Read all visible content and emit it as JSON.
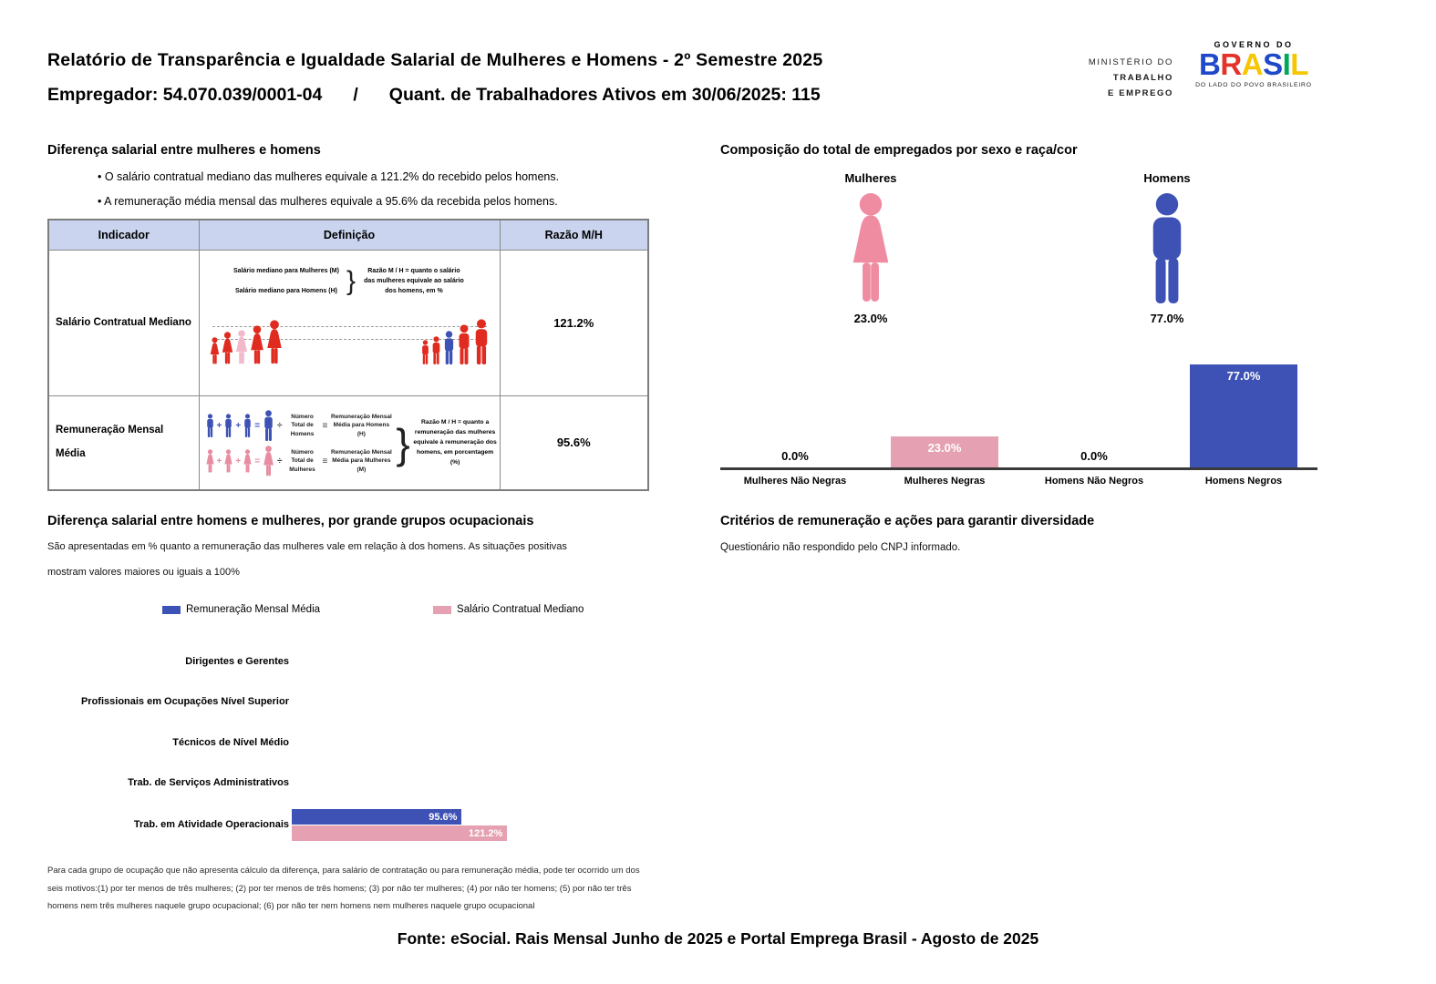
{
  "colors": {
    "men_blue": "#3d52b4",
    "women_pink_icon": "#f08ca2",
    "bar_pink": "#e5a1b1",
    "figure_red": "#e02b20",
    "figure_light_pink": "#f2b9cb",
    "table_header_bg": "#cbd4ee",
    "brasil_letters": [
      "#1f49c9",
      "#e3342c",
      "#f6c700",
      "#1f49c9",
      "#00a859",
      "#f6c700"
    ]
  },
  "header": {
    "title": "Relatório de Transparência e Igualdade Salarial de Mulheres e Homens - 2º Semestre 2025",
    "employer": "Empregador: 54.070.039/0001-04",
    "separator": "/",
    "workers": "Quant. de Trabalhadores Ativos em 30/06/2025: 115",
    "ministry_line1": "MINISTÉRIO DO",
    "ministry_line2": "TRABALHO",
    "ministry_line3": "E EMPREGO",
    "gov_top": "GOVERNO DO",
    "gov_name": "BRASIL",
    "gov_tagline": "DO LADO DO POVO BRASILEIRO"
  },
  "salary_gap": {
    "heading": "Diferença salarial entre mulheres e homens",
    "bullets": [
      "O salário contratual mediano das mulheres equivale a 121.2% do recebido pelos homens.",
      "A remuneração média mensal das mulheres equivale a 95.6% da recebida pelos homens."
    ],
    "table": {
      "col_indicator": "Indicador",
      "col_definition": "Definição",
      "col_ratio": "Razão M/H",
      "row1": {
        "indicator": "Salário Contratual Mediano",
        "line_women": "Salário mediano para Mulheres (M)",
        "line_men": "Salário mediano para Homens (H)",
        "note": "Razão M / H = quanto o salário das mulheres equivale ao salário dos homens, em %",
        "ratio": "121.2%"
      },
      "row2": {
        "indicator": "Remuneração Mensal Média",
        "men_divisor": "Número Total de Homens",
        "men_result": "Remuneração Mensal Média para Homens (H)",
        "women_divisor": "Número Total de Mulheres",
        "women_result": "Remuneração Mensal Média para Mulheres (M)",
        "note": "Razão M / H = quanto a remuneração das mulheres equivale à remuneração dos homens, em porcentagem (%)",
        "ratio": "95.6%"
      }
    }
  },
  "composition": {
    "heading": "Composição do total de empregados por sexo e raça/cor",
    "women_label": "Mulheres",
    "men_label": "Homens",
    "women_pct": "23.0%",
    "men_pct": "77.0%",
    "bars": [
      {
        "category": "Mulheres Não Negras",
        "value": 0,
        "label": "0.0%"
      },
      {
        "category": "Mulheres Negras",
        "value": 23,
        "label": "23.0%"
      },
      {
        "category": "Homens Não Negros",
        "value": 0,
        "label": "0.0%"
      },
      {
        "category": "Homens Negros",
        "value": 77,
        "label": "77.0%"
      }
    ]
  },
  "occupational": {
    "heading": "Diferença salarial entre homens e mulheres, por grande grupos ocupacionais",
    "description_line1": "São apresentadas em % quanto a remuneração das mulheres vale em relação à dos homens. As situações positivas",
    "description_line2": "mostram valores maiores ou iguais a 100%",
    "legend": [
      {
        "label": "Remuneração Mensal Média"
      },
      {
        "label": "Salário Contratual Mediano"
      }
    ],
    "rows": [
      {
        "label": "Dirigentes e Gerentes"
      },
      {
        "label": "Profissionais em Ocupações Nível Superior"
      },
      {
        "label": "Técnicos de Nível Médio"
      },
      {
        "label": "Trab. de Serviços Administrativos"
      },
      {
        "label": "Trab. em Atividade Operacionais",
        "rem_value": 95.6,
        "rem_label": "95.6%",
        "sal_value": 121.2,
        "sal_label": "121.2%"
      }
    ],
    "footnote": "Para cada grupo de ocupação que não apresenta cálculo da diferença, para salário de contratação ou para remuneração média, pode ter ocorrido um dos seis motivos:(1) por ter menos de três mulheres; (2) por ter menos de três homens; (3) por não ter mulheres; (4) por não ter homens; (5) por não ter três homens nem três mulheres naquele grupo ocupacional; (6) por não ter nem homens nem mulheres naquele grupo ocupacional"
  },
  "diversity": {
    "heading": "Critérios de remuneração e ações para garantir diversidade",
    "text": "Questionário não respondido pelo CNPJ informado."
  },
  "footer": {
    "source": "Fonte: eSocial. Rais Mensal Junho de 2025 e Portal Emprega Brasil - Agosto de 2025"
  },
  "symbols": {
    "plus": "+",
    "equals": "=",
    "divide": "÷",
    "equiv": "≡",
    "brace": "}"
  },
  "chart_data": [
    {
      "type": "bar",
      "title": "Composição do total de empregados por sexo e raça/cor",
      "categories": [
        "Mulheres Não Negras",
        "Mulheres Negras",
        "Homens Não Negros",
        "Homens Negros"
      ],
      "values": [
        0.0,
        23.0,
        0.0,
        77.0
      ],
      "unit": "%",
      "ylim": [
        0,
        100
      ],
      "grid": false,
      "legend_position": "none",
      "summary": {
        "Mulheres": 23.0,
        "Homens": 77.0
      }
    },
    {
      "type": "bar",
      "orientation": "horizontal",
      "title": "Diferença salarial entre homens e mulheres, por grande grupos ocupacionais",
      "categories": [
        "Dirigentes e Gerentes",
        "Profissionais em Ocupações Nível Superior",
        "Técnicos de Nível Médio",
        "Trab. de Serviços Administrativos",
        "Trab. em Atividade Operacionais"
      ],
      "series": [
        {
          "name": "Remuneração Mensal Média",
          "values": [
            null,
            null,
            null,
            null,
            95.6
          ]
        },
        {
          "name": "Salário Contratual Mediano",
          "values": [
            null,
            null,
            null,
            null,
            121.2
          ]
        }
      ],
      "unit": "%",
      "legend_position": "top"
    }
  ]
}
